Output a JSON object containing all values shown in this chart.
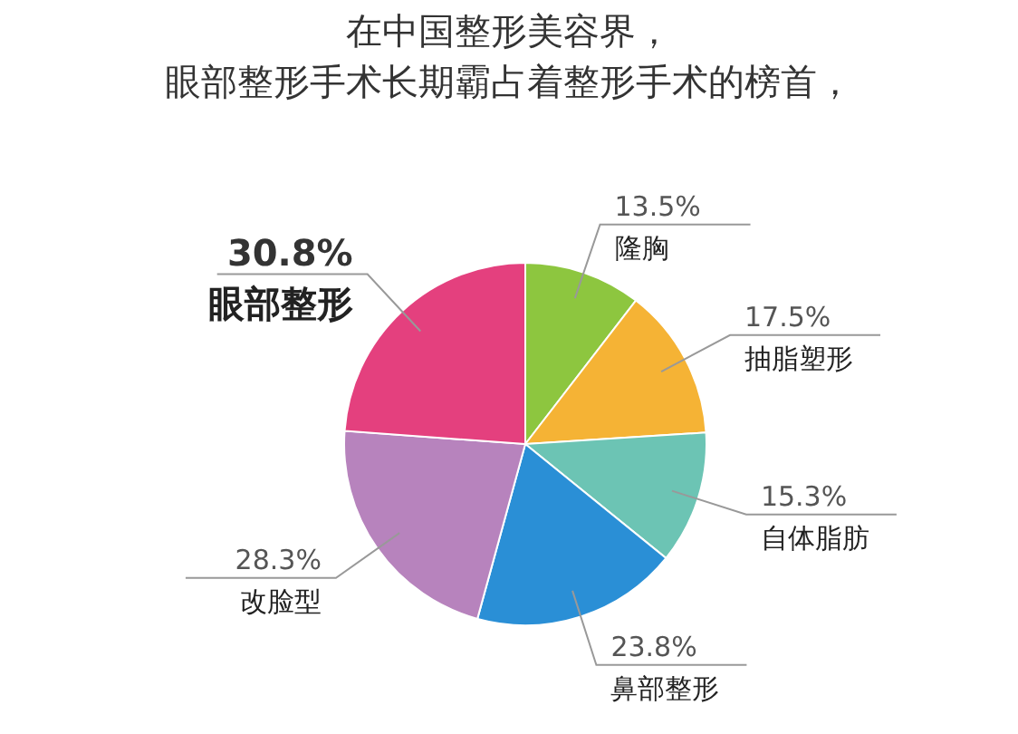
{
  "chart_data": {
    "type": "pie",
    "title": "在中国整形美容界，",
    "subtitle": "眼部整形手术长期霸占着整形手术的榜首，",
    "categories": [
      "隆胸",
      "抽脂塑形",
      "自体脂肪",
      "鼻部整形",
      "改脸型",
      "眼部整形"
    ],
    "values": [
      13.5,
      17.5,
      15.3,
      23.8,
      28.3,
      30.8
    ],
    "colors": [
      "#8dc63f",
      "#f5b335",
      "#6cc4b4",
      "#2a8fd6",
      "#b783bd",
      "#e4407e"
    ],
    "value_labels": [
      "13.5%",
      "17.5%",
      "15.3%",
      "23.8%",
      "28.3%",
      "30.8%"
    ]
  }
}
